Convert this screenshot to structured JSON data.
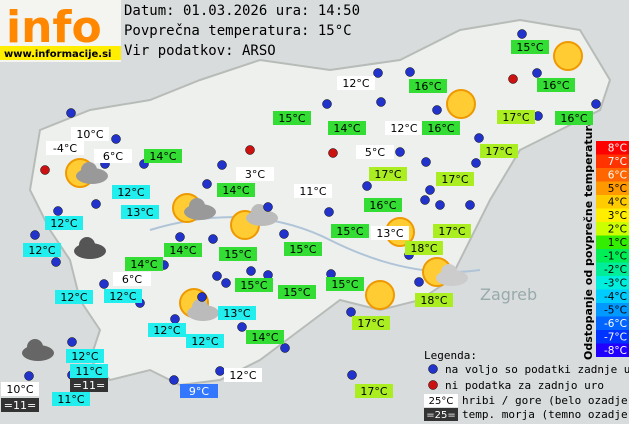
{
  "header": {
    "logo": "info",
    "site": "www.informacije.si",
    "date": "Datum: 01.03.2026 ura: 14:50",
    "avg": "Povprečna temperatura: 15°C",
    "source": "Vir podatkov: ARSO"
  },
  "map": {
    "places": [
      "Zagreb"
    ],
    "stations": [
      "15°C",
      "12°C",
      "16°C",
      "16°C",
      "15°C",
      "14°C",
      "12°C",
      "16°C",
      "17°C",
      "16°C",
      "10°C",
      "-4°C",
      "6°C",
      "14°C",
      "5°C",
      "17°C",
      "3°C",
      "17°C",
      "17°C",
      "12°C",
      "14°C",
      "11°C",
      "16°C",
      "13°C",
      "12°C",
      "15°C",
      "13°C",
      "17°C",
      "18°C",
      "12°C",
      "14°C",
      "15°C",
      "15°C",
      "14°C",
      "6°C",
      "15°C",
      "15°C",
      "15°C",
      "12°C",
      "12°C",
      "18°C",
      "13°C",
      "17°C",
      "12°C",
      "12°C",
      "14°C",
      "12°C",
      "11°C",
      "=11=",
      "12°C",
      "10°C",
      "9°C",
      "11°C",
      "=11=",
      "17°C"
    ]
  },
  "scale": {
    "title": "Odstopanje od povprečne temperature:",
    "labels": [
      "8°C",
      "7°C",
      "6°C",
      "5°C",
      "4°C",
      "3°C",
      "2°C",
      "1°C",
      "-1°C",
      "-2°C",
      "-3°C",
      "-4°C",
      "-5°C",
      "-6°C",
      "-7°C",
      "-8°C"
    ]
  },
  "legend": {
    "title": "Legenda:",
    "available": "na voljo so podatki zadnje ure",
    "missing": "ni podatka za zadnjo uro",
    "mountain_sample": "25°C",
    "mountain": "hribi / gore (belo ozadje)",
    "sea_sample": "=25=",
    "sea": "temp. morja (temno ozadje)"
  }
}
